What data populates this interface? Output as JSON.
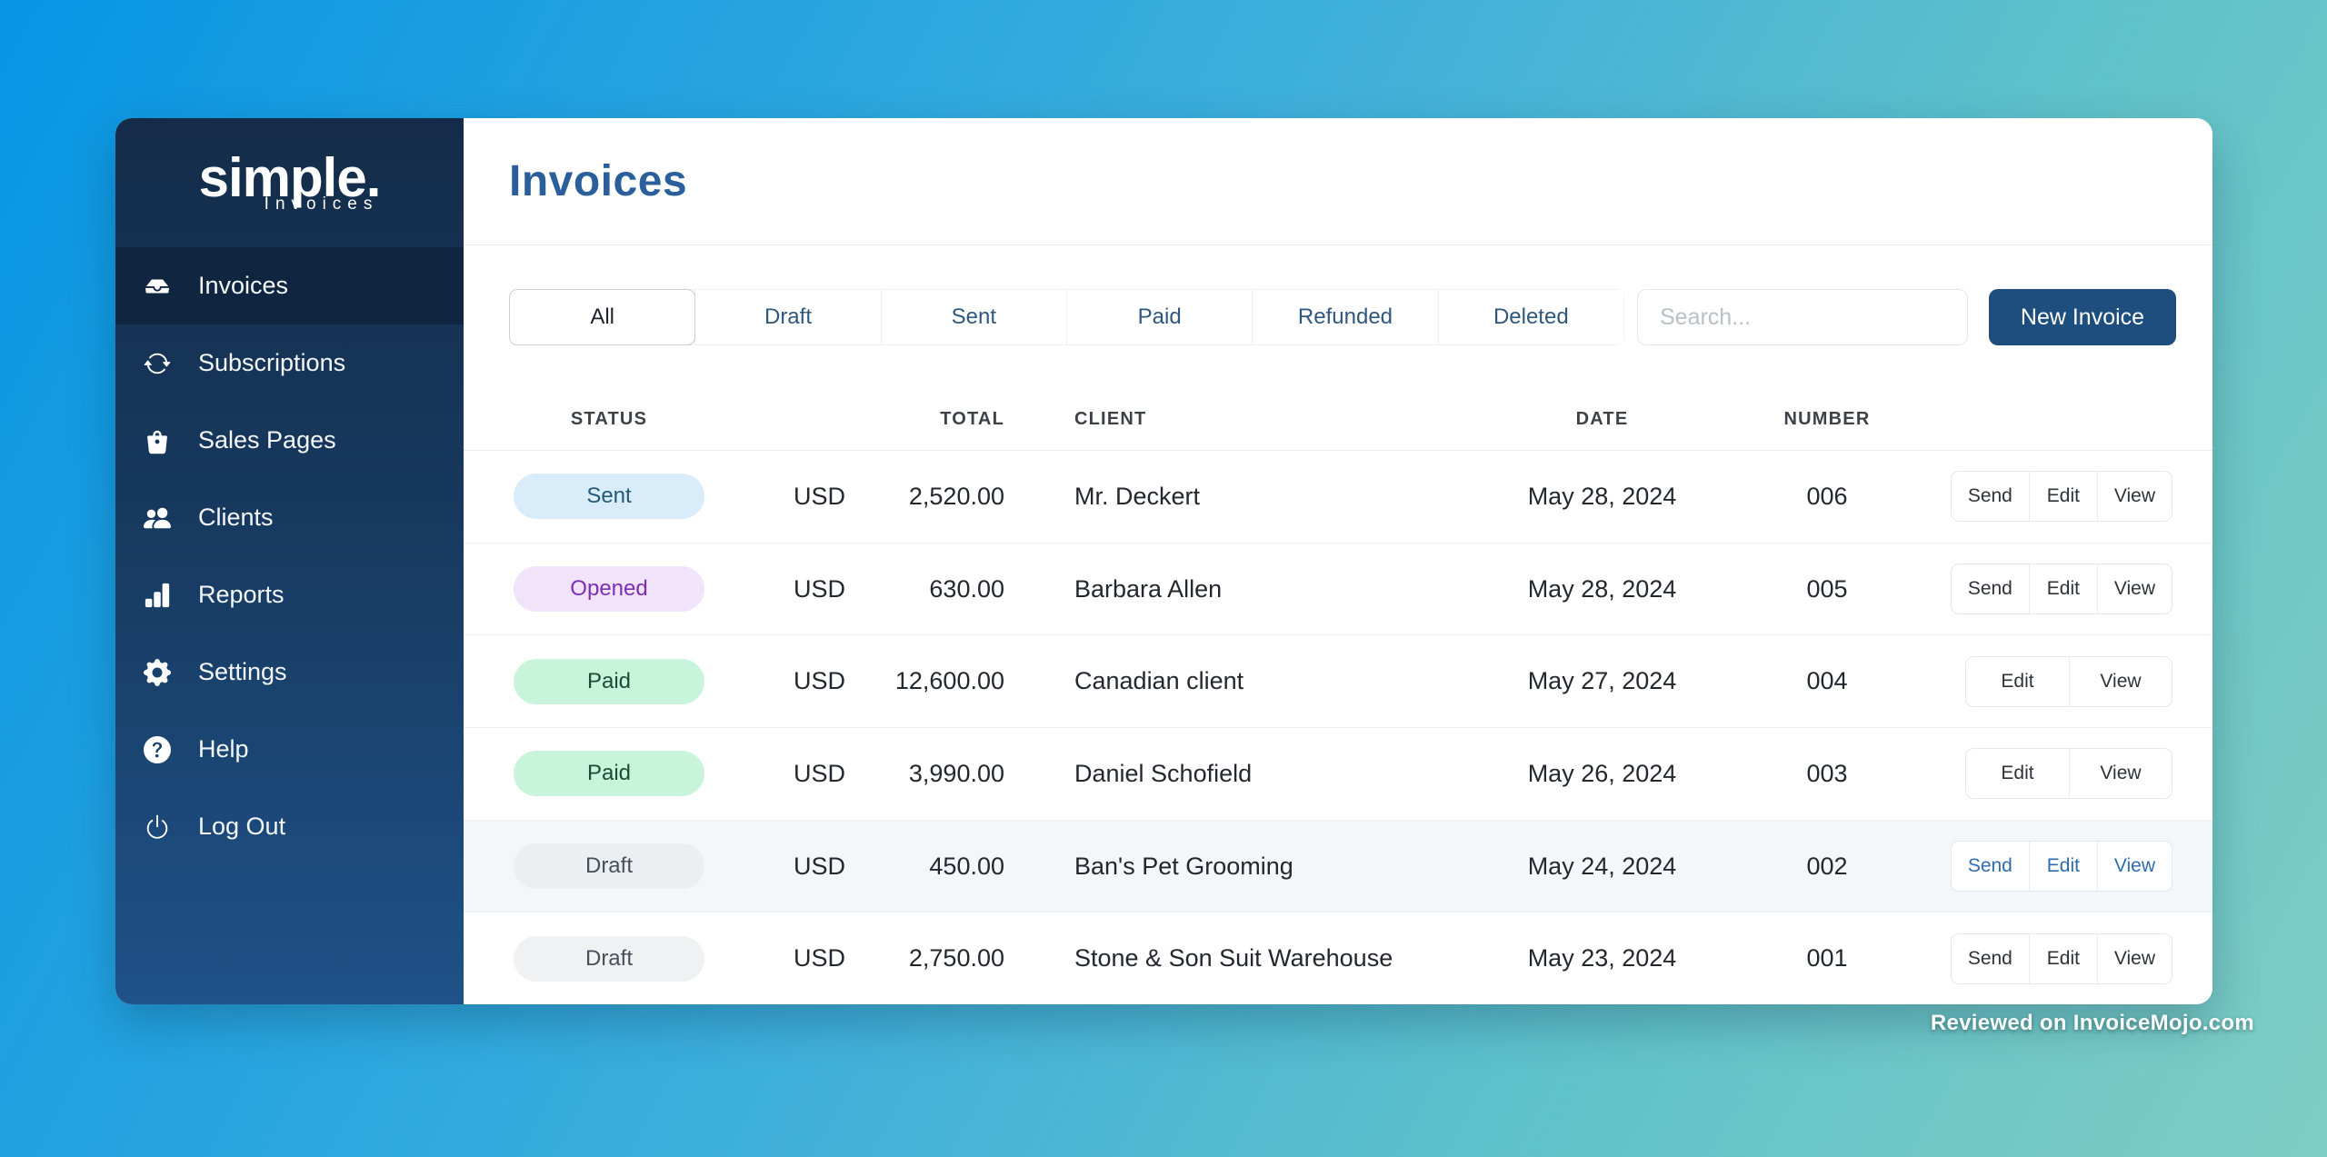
{
  "brand": {
    "name": "simple.",
    "tagline": "Invoices"
  },
  "sidebar": {
    "items": [
      {
        "label": "Invoices",
        "icon": "inbox-icon",
        "active": true
      },
      {
        "label": "Subscriptions",
        "icon": "sync-icon",
        "active": false
      },
      {
        "label": "Sales Pages",
        "icon": "shopping-bag-icon",
        "active": false
      },
      {
        "label": "Clients",
        "icon": "users-icon",
        "active": false
      },
      {
        "label": "Reports",
        "icon": "bar-chart-icon",
        "active": false
      },
      {
        "label": "Settings",
        "icon": "gear-icon",
        "active": false
      },
      {
        "label": "Help",
        "icon": "help-circle-icon",
        "active": false
      },
      {
        "label": "Log Out",
        "icon": "power-icon",
        "active": false
      }
    ]
  },
  "header": {
    "title": "Invoices"
  },
  "toolbar": {
    "tabs": [
      {
        "label": "All",
        "active": true
      },
      {
        "label": "Draft",
        "active": false
      },
      {
        "label": "Sent",
        "active": false
      },
      {
        "label": "Paid",
        "active": false
      },
      {
        "label": "Refunded",
        "active": false
      },
      {
        "label": "Deleted",
        "active": false
      }
    ],
    "search_placeholder": "Search...",
    "new_invoice_label": "New Invoice"
  },
  "table": {
    "columns": [
      {
        "label": "STATUS",
        "align": "center"
      },
      {
        "label": "TOTAL",
        "align": "right"
      },
      {
        "label": "CLIENT",
        "align": "left"
      },
      {
        "label": "DATE",
        "align": "center"
      },
      {
        "label": "NUMBER",
        "align": "center"
      }
    ],
    "rows": [
      {
        "status": "Sent",
        "status_type": "sent",
        "currency": "USD",
        "amount": "2,520.00",
        "client": "Mr. Deckert",
        "date": "May 28, 2024",
        "number": "006",
        "actions": [
          "Send",
          "Edit",
          "View"
        ],
        "highlighted": false
      },
      {
        "status": "Opened",
        "status_type": "opened",
        "currency": "USD",
        "amount": "630.00",
        "client": "Barbara Allen",
        "date": "May 28, 2024",
        "number": "005",
        "actions": [
          "Send",
          "Edit",
          "View"
        ],
        "highlighted": false
      },
      {
        "status": "Paid",
        "status_type": "paid",
        "currency": "USD",
        "amount": "12,600.00",
        "client": "Canadian client",
        "date": "May 27, 2024",
        "number": "004",
        "actions": [
          "Edit",
          "View"
        ],
        "highlighted": false
      },
      {
        "status": "Paid",
        "status_type": "paid",
        "currency": "USD",
        "amount": "3,990.00",
        "client": "Daniel Schofield",
        "date": "May 26, 2024",
        "number": "003",
        "actions": [
          "Edit",
          "View"
        ],
        "highlighted": false
      },
      {
        "status": "Draft",
        "status_type": "draft",
        "currency": "USD",
        "amount": "450.00",
        "client": "Ban's Pet Grooming",
        "date": "May 24, 2024",
        "number": "002",
        "actions": [
          "Send",
          "Edit",
          "View"
        ],
        "highlighted": true
      },
      {
        "status": "Draft",
        "status_type": "draft",
        "currency": "USD",
        "amount": "2,750.00",
        "client": "Stone & Son Suit Warehouse",
        "date": "May 23, 2024",
        "number": "001",
        "actions": [
          "Send",
          "Edit",
          "View"
        ],
        "highlighted": false
      }
    ]
  },
  "footer": {
    "watermark": "Reviewed on InvoiceMojo.com"
  },
  "colors": {
    "accent": "#1d4e7e",
    "title": "#2b5f9c",
    "sidebar-top": "#142c49",
    "sidebar-bottom": "#1e5288",
    "sidebar-active": "#102540",
    "tab-text": "#30587f",
    "badge-sent-bg": "#d8ecf9",
    "badge-sent-text": "#235a77",
    "badge-opened-bg": "#f0e3fa",
    "badge-opened-text": "#7c2fb4",
    "badge-paid-bg": "#c9f4dc",
    "badge-paid-text": "#1d4a33",
    "badge-draft-bg": "#f0f1f3",
    "badge-draft-text": "#46505a",
    "bg-gradient-start": "#0795e4",
    "bg-gradient-mid": "#3dafdc",
    "bg-gradient-end": "#7ecdc5"
  }
}
